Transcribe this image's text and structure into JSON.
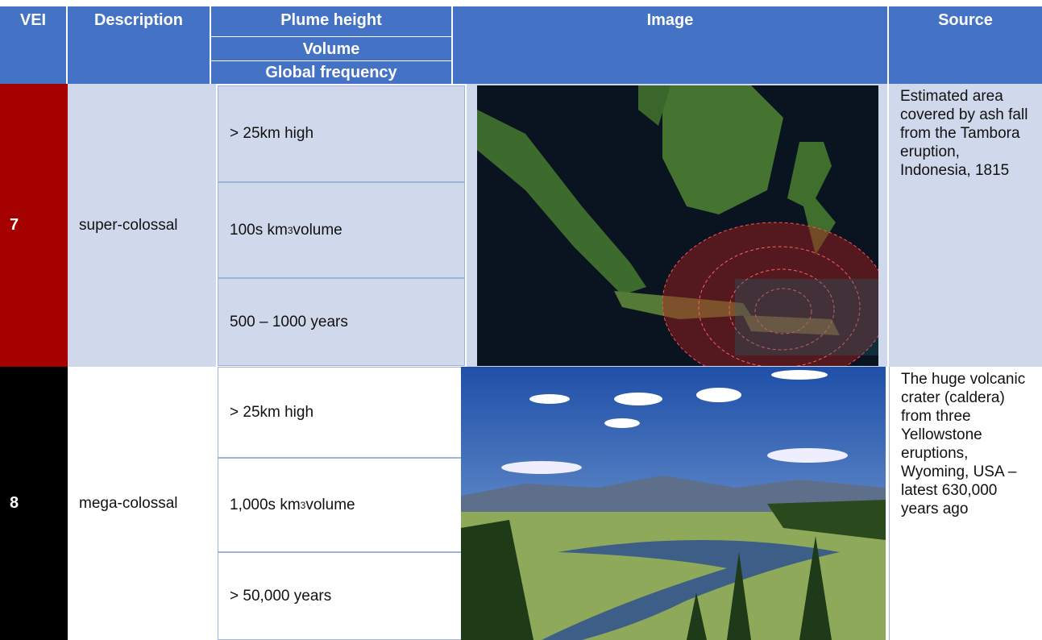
{
  "header": {
    "vei": "VEI",
    "description": "Description",
    "plume": [
      "Plume height",
      "Volume",
      "Global frequency"
    ],
    "image": "Image",
    "source": "Source"
  },
  "rows": [
    {
      "vei": "7",
      "description": "super-colossal",
      "height": "> 25km high",
      "volume": {
        "text": "100s km",
        "sup": "3",
        "rest": " volume"
      },
      "frequency": "500 – 1000 years",
      "source": "Estimated area covered by ash fall from the Tambora eruption, Indonesia, 1815"
    },
    {
      "vei": "8",
      "description": "mega-colossal",
      "height": "> 25km high",
      "volume": {
        "text": "1,000s km",
        "sup": "3",
        "rest": " volume"
      },
      "frequency": "> 50,000 years",
      "source": "The huge volcanic crater (caldera) from three Yellowstone eruptions, Wyoming, USA – latest 630,000 years ago"
    }
  ]
}
